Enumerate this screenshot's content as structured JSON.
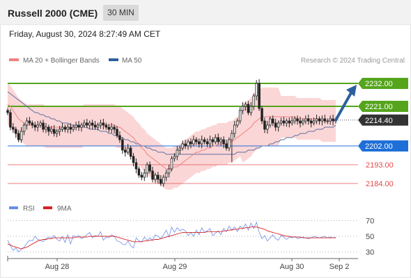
{
  "header": {
    "instrument": "Russell 2000 (CME)",
    "timeframe": "30 MIN",
    "datetime": "Friday, August 30, 2024 8:27:49 AM CET"
  },
  "legend": {
    "ma20_label": "MA 20 + Bollinger Bands",
    "ma50_label": "MA 50",
    "credit": "Research © 2024 Trading Central",
    "rsi_label": "RSI",
    "ma9_label": "9MA"
  },
  "colors": {
    "bullish_level": "#55a51c",
    "pivot_level": "#1f6fd8",
    "bearish_level": "#e4474b",
    "bollinger_fill": "#f9c8c8",
    "ma20": "#f08080",
    "ma50": "#5a6fa0",
    "arrow": "#2c5f9e",
    "candle": "#222222",
    "rsi": "#6a8ee8",
    "ma9": "#d82020",
    "last_price_bg": "#333333"
  },
  "chart_data": [
    {
      "type": "candlestick",
      "name": "price",
      "x_ticks": [
        "Aug 28",
        "Aug 29",
        "Aug 30",
        "Sep 2"
      ],
      "ylim": [
        2178,
        2236
      ],
      "levels": [
        {
          "value": 2232.0,
          "label": "2232.00",
          "kind": "resistance"
        },
        {
          "value": 2221.0,
          "label": "2221.00",
          "kind": "resistance"
        },
        {
          "value": 2214.4,
          "label": "2214.40",
          "kind": "last"
        },
        {
          "value": 2202.0,
          "label": "2202.00",
          "kind": "pivot"
        },
        {
          "value": 2193.0,
          "label": "2193.00",
          "kind": "support"
        },
        {
          "value": 2184.0,
          "label": "2184.00",
          "kind": "support"
        }
      ],
      "close": [
        2218,
        2211,
        2210,
        2208,
        2205,
        2209,
        2212,
        2214,
        2213,
        2212,
        2211,
        2212,
        2213,
        2210,
        2211,
        2209,
        2210,
        2208,
        2209,
        2210,
        2211,
        2210,
        2211,
        2210,
        2211,
        2212,
        2211,
        2212,
        2213,
        2212,
        2213,
        2212,
        2211,
        2212,
        2213,
        2212,
        2211,
        2210,
        2211,
        2210,
        2207,
        2205,
        2200,
        2199,
        2201,
        2197,
        2194,
        2191,
        2188,
        2187,
        2189,
        2193,
        2190,
        2186,
        2188,
        2186,
        2184,
        2187,
        2189,
        2191,
        2196,
        2197,
        2200,
        2201,
        2203,
        2202,
        2204,
        2203,
        2205,
        2204,
        2203,
        2205,
        2204,
        2203,
        2205,
        2204,
        2206,
        2204,
        2205,
        2203,
        2201,
        2205,
        2208,
        2212,
        2214,
        2219,
        2221,
        2222,
        2218,
        2221,
        2226,
        2232,
        2220,
        2214,
        2210,
        2212,
        2215,
        2213,
        2211,
        2213,
        2214,
        2213,
        2214,
        2213,
        2214,
        2215,
        2214,
        2213,
        2214,
        2215,
        2214,
        2213,
        2214,
        2215,
        2214,
        2215,
        2214,
        2214,
        2215,
        2214,
        2214.4
      ],
      "ma20": [
        2222,
        2221,
        2219,
        2217,
        2215,
        2214,
        2213,
        2212,
        2212,
        2212,
        2212,
        2212,
        2212,
        2212,
        2211,
        2211,
        2211,
        2211,
        2211,
        2211,
        2211,
        2211,
        2211,
        2211,
        2211,
        2211,
        2211,
        2211,
        2212,
        2212,
        2212,
        2212,
        2212,
        2212,
        2212,
        2212,
        2212,
        2212,
        2212,
        2212,
        2211,
        2211,
        2210,
        2209,
        2208,
        2207,
        2206,
        2204,
        2203,
        2201,
        2200,
        2198,
        2197,
        2196,
        2195,
        2194,
        2193,
        2192,
        2191,
        2191,
        2191,
        2192,
        2192,
        2193,
        2194,
        2195,
        2196,
        2197,
        2198,
        2199,
        2199,
        2200,
        2200,
        2201,
        2201,
        2202,
        2202,
        2203,
        2203,
        2203,
        2203,
        2204,
        2204,
        2205,
        2206,
        2207,
        2208,
        2209,
        2210,
        2211,
        2213,
        2214,
        2215,
        2216,
        2216,
        2216,
        2216,
        2216,
        2216,
        2216,
        2216,
        2216,
        2216,
        2216,
        2216,
        2216,
        2215,
        2215,
        2215,
        2215,
        2215,
        2215,
        2215,
        2215,
        2215,
        2214,
        2214,
        2214,
        2214,
        2214,
        2214
      ],
      "ma50": [
        2228,
        2227,
        2226,
        2225,
        2224,
        2223,
        2222,
        2221,
        2220,
        2219,
        2218,
        2218,
        2217,
        2217,
        2216,
        2216,
        2215,
        2215,
        2214,
        2214,
        2213,
        2213,
        2213,
        2212,
        2212,
        2212,
        2211,
        2211,
        2211,
        2211,
        2210,
        2210,
        2210,
        2210,
        2209,
        2209,
        2209,
        2208,
        2208,
        2207,
        2207,
        2206,
        2206,
        2205,
        2205,
        2204,
        2204,
        2203,
        2203,
        2202,
        2202,
        2201,
        2201,
        2200,
        2200,
        2199,
        2199,
        2199,
        2198,
        2198,
        2198,
        2198,
        2198,
        2198,
        2198,
        2198,
        2198,
        2198,
        2198,
        2198,
        2198,
        2198,
        2198,
        2198,
        2198,
        2198,
        2198,
        2198,
        2198,
        2198,
        2198,
        2198,
        2198,
        2198,
        2199,
        2199,
        2199,
        2199,
        2200,
        2200,
        2200,
        2201,
        2201,
        2202,
        2202,
        2202,
        2203,
        2203,
        2204,
        2204,
        2205,
        2205,
        2206,
        2206,
        2206,
        2207,
        2207,
        2208,
        2208,
        2208,
        2209,
        2209,
        2209,
        2210,
        2210,
        2210,
        2211,
        2211,
        2211,
        2211,
        2212
      ]
    },
    {
      "type": "line",
      "name": "rsi",
      "x_ticks": [
        "Aug 28",
        "Aug 29",
        "Aug 30",
        "Sep 2"
      ],
      "ylim": [
        25,
        75
      ],
      "y_ticks": [
        70,
        50,
        30
      ],
      "series": [
        {
          "name": "RSI",
          "values": [
            45,
            38,
            32,
            35,
            30,
            33,
            36,
            41,
            45,
            44,
            50,
            46,
            45,
            43,
            47,
            49,
            48,
            51,
            46,
            44,
            50,
            42,
            52,
            40,
            51,
            49,
            51,
            47,
            49,
            52,
            55,
            48,
            51,
            50,
            56,
            45,
            49,
            48,
            52,
            50,
            44,
            43,
            40,
            39,
            44,
            38,
            35,
            48,
            44,
            43,
            49,
            45,
            48,
            45,
            52,
            50,
            47,
            52,
            58,
            49,
            62,
            55,
            61,
            57,
            59,
            57,
            51,
            55,
            50,
            58,
            52,
            61,
            55,
            57,
            60,
            51,
            54,
            57,
            52,
            60,
            56,
            63,
            58,
            62,
            56,
            63,
            60,
            66,
            58,
            67,
            60,
            68,
            55,
            47,
            51,
            44,
            48,
            52,
            47,
            45,
            51,
            49,
            46,
            49,
            48,
            50,
            47,
            48,
            49,
            48,
            47,
            48,
            50,
            49,
            48,
            49,
            50,
            48,
            49,
            48,
            49
          ]
        },
        {
          "name": "9MA",
          "values": [
            40,
            39,
            37,
            36,
            35,
            34,
            35,
            36,
            38,
            40,
            42,
            44,
            45,
            46,
            46,
            47,
            47,
            48,
            48,
            48,
            48,
            48,
            48,
            48,
            48,
            49,
            49,
            49,
            49,
            49,
            50,
            50,
            50,
            50,
            50,
            50,
            50,
            50,
            50,
            50,
            49,
            48,
            47,
            46,
            45,
            44,
            43,
            43,
            43,
            43,
            44,
            44,
            45,
            45,
            46,
            46,
            47,
            48,
            49,
            50,
            51,
            52,
            53,
            54,
            55,
            55,
            55,
            55,
            55,
            55,
            55,
            55,
            55,
            56,
            56,
            56,
            56,
            56,
            56,
            57,
            57,
            58,
            58,
            59,
            59,
            60,
            60,
            61,
            61,
            62,
            62,
            62,
            61,
            60,
            59,
            57,
            56,
            55,
            54,
            53,
            52,
            51,
            50,
            50,
            49,
            49,
            49,
            49,
            48,
            48,
            48,
            48,
            48,
            48,
            48,
            48,
            48,
            48,
            48,
            48,
            48
          ]
        }
      ]
    }
  ]
}
